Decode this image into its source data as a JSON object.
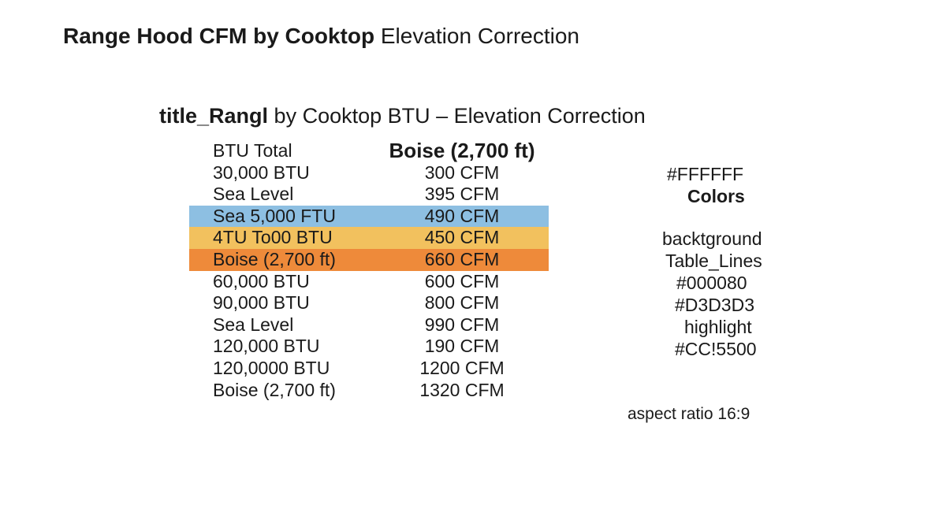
{
  "title": {
    "bold_part": "Range Hood CFM by Cooktop",
    "rest": "Elevation Correction"
  },
  "subtitle": {
    "bold_part": "title_Rangl",
    "rest": "by Cooktop BTU – Elevation Correction"
  },
  "chart_data": {
    "type": "table",
    "columns": [
      "BTU Total",
      "Boise (2,700 ft)"
    ],
    "rows": [
      {
        "label": "30,000 BTU",
        "value": "300 CFM",
        "highlight": ""
      },
      {
        "label": "Sea Level",
        "value": "395 CFM",
        "highlight": ""
      },
      {
        "label": "Sea 5,000 FTU",
        "value": "490 CFM",
        "highlight": "blue"
      },
      {
        "label": "4TU To00 BTU",
        "value": "450 CFM",
        "highlight": "yellow"
      },
      {
        "label": "Boise (2,700 ft)",
        "value": "660 CFM",
        "highlight": "orange"
      },
      {
        "label": "60,000 BTU",
        "value": "600 CFM",
        "highlight": ""
      },
      {
        "label": "90,000 BTU",
        "value": "800 CFM",
        "highlight": ""
      },
      {
        "label": "Sea Level",
        "value": "990 CFM",
        "highlight": ""
      },
      {
        "label": "120,000 BTU",
        "value": "190 CFM",
        "highlight": ""
      },
      {
        "label": "120,0000 BTU",
        "value": "1200 CFM",
        "highlight": ""
      },
      {
        "label": "Boise (2,700 ft)",
        "value": "1320 CFM",
        "highlight": ""
      }
    ]
  },
  "legend": {
    "white_hex": "#FFFFFF",
    "colors_label": "Colors",
    "background_label": "backtground",
    "table_lines_label": "Table_Lines",
    "navy_hex": "#000080",
    "gray_hex": "#D3D3D3",
    "highlight_label": "highlight",
    "orange_hex": "#CC!5500"
  },
  "aspect_note": "aspect ratio 16:9",
  "highlight_colors": {
    "blue": "#8DBFE2",
    "yellow": "#F2C15E",
    "orange": "#EE8A3A"
  }
}
